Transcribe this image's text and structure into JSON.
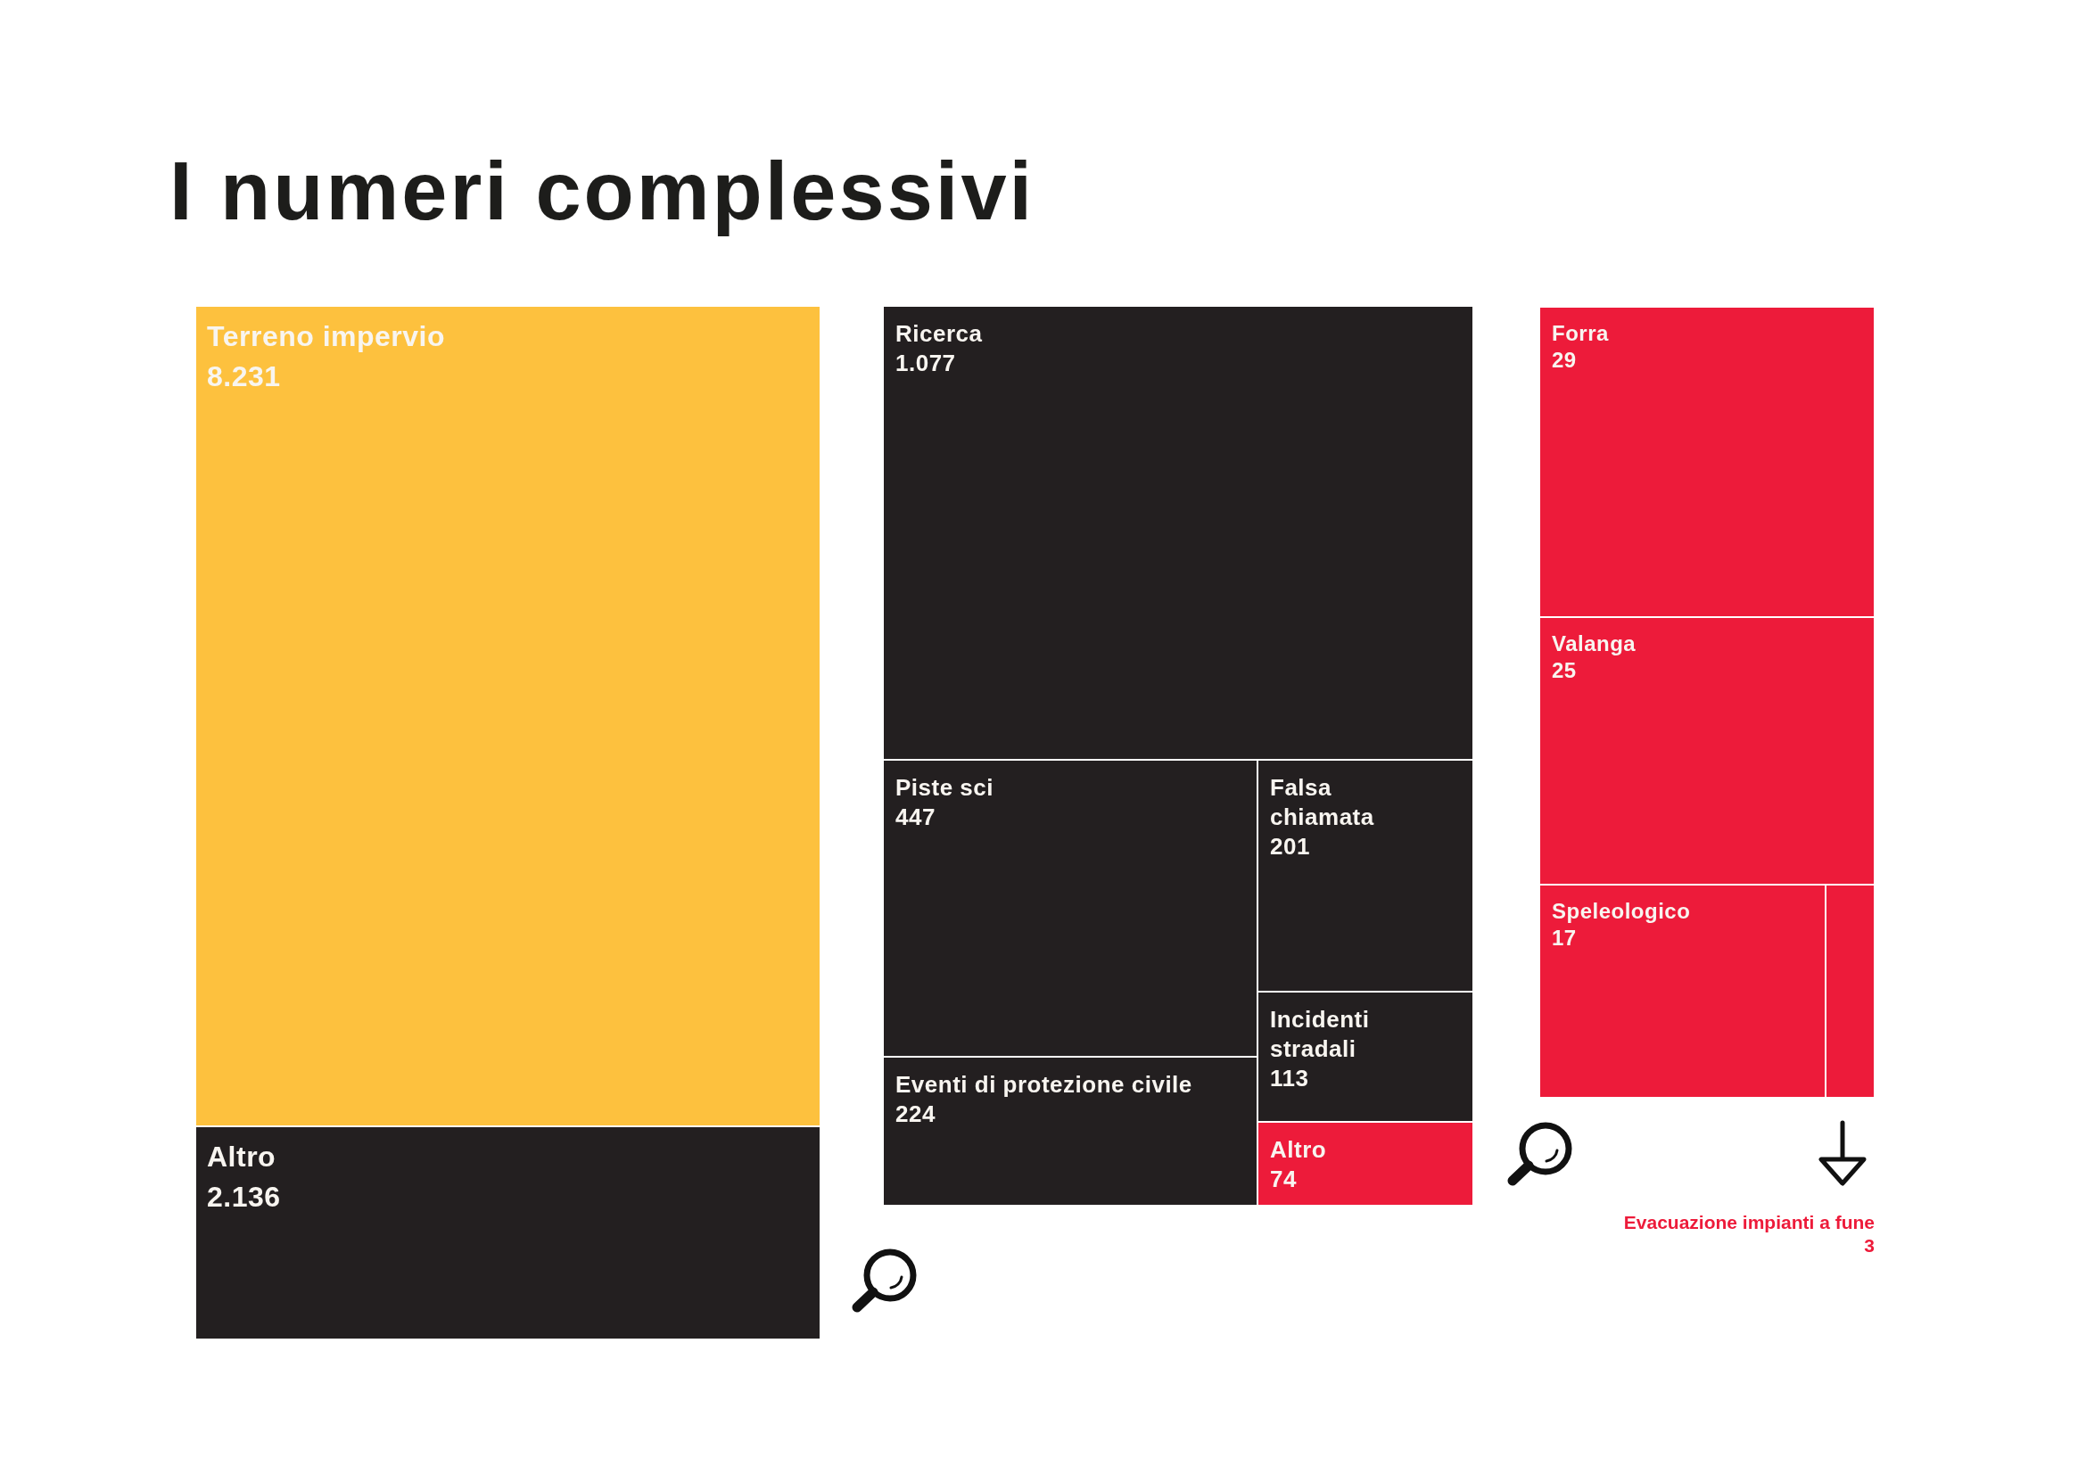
{
  "chart_data": [
    {
      "type": "other",
      "title": "I numeri complessivi",
      "categories": [
        "Terreno impervio",
        "Altro"
      ],
      "values": [
        8231,
        2136
      ],
      "value_labels": [
        "8.231",
        "2.136"
      ],
      "colors": [
        "#fdc13e",
        "#231f20"
      ]
    },
    {
      "type": "other",
      "categories": [
        "Ricerca",
        "Piste sci",
        "Eventi di protezione civile",
        "Falsa chiamata",
        "Incidenti stradali",
        "Altro"
      ],
      "values": [
        1077,
        447,
        224,
        201,
        113,
        74
      ],
      "value_labels": [
        "1.077",
        "447",
        "224",
        "201",
        "113",
        "74"
      ],
      "colors": [
        "#231f20",
        "#231f20",
        "#231f20",
        "#231f20",
        "#231f20",
        "#ed1b3a"
      ]
    },
    {
      "type": "other",
      "categories": [
        "Forra",
        "Valanga",
        "Speleologico",
        "Evacuazione impianti a fune"
      ],
      "values": [
        29,
        25,
        17,
        3
      ],
      "value_labels": [
        "29",
        "25",
        "17",
        "3"
      ],
      "colors": [
        "#ed1b3a",
        "#ed1b3a",
        "#ed1b3a",
        "#ed1b3a"
      ]
    }
  ]
}
